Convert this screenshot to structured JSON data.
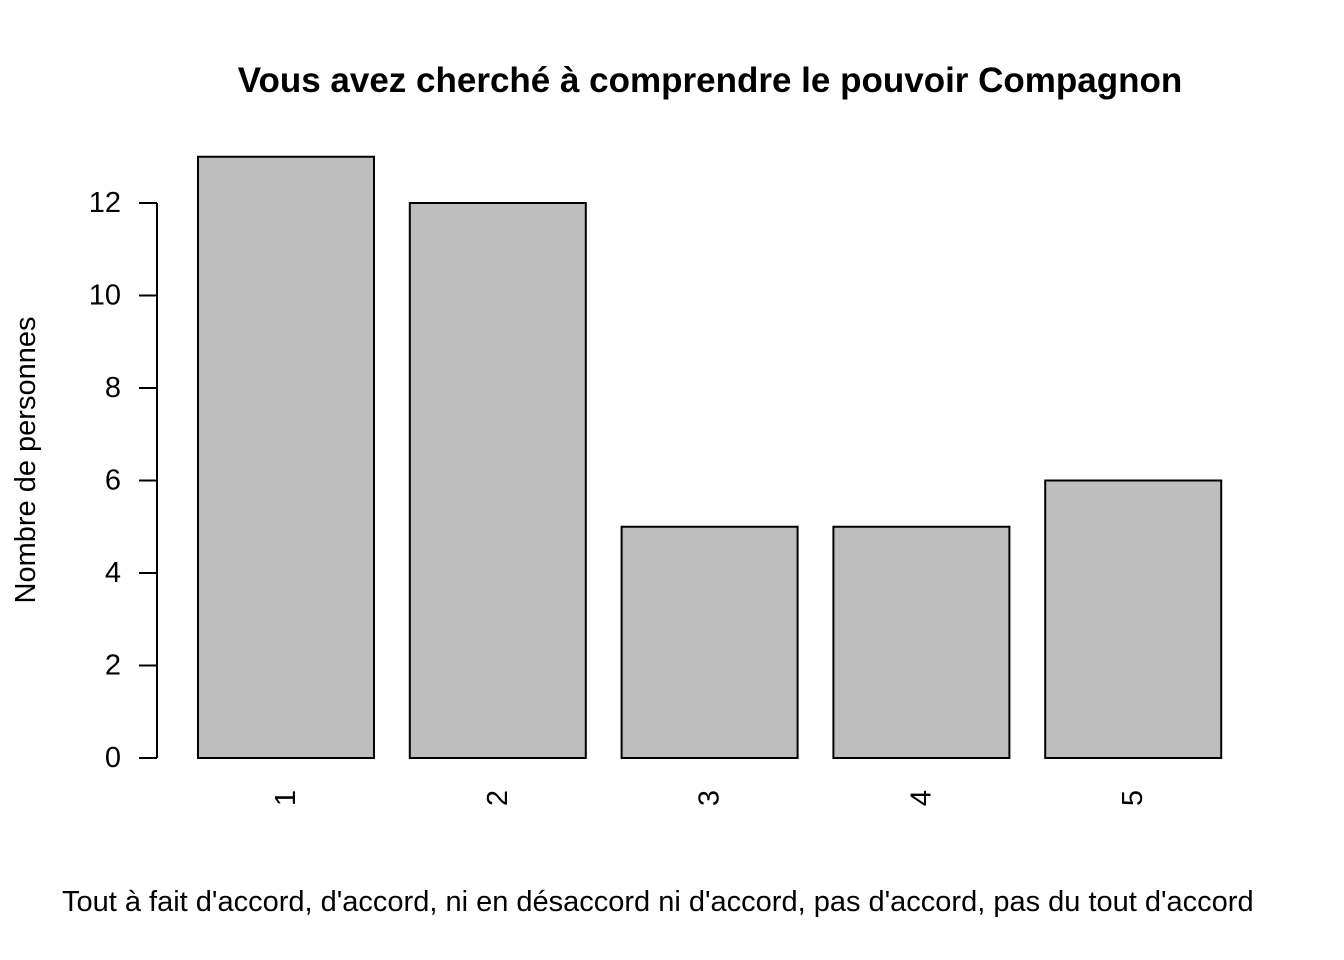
{
  "chart_data": {
    "type": "bar",
    "title": "Vous avez cherché à comprendre le pouvoir Compagnon",
    "xlabel": "Tout à fait d'accord, d'accord, ni en désaccord ni d'accord, pas d'accord, pas du tout d'accord",
    "ylabel": "Nombre de personnes",
    "categories": [
      "1",
      "2",
      "3",
      "4",
      "5"
    ],
    "values": [
      13,
      12,
      5,
      5,
      6
    ],
    "ylim": [
      0,
      13
    ],
    "yticks": [
      "0",
      "2",
      "4",
      "6",
      "8",
      "10",
      "12"
    ],
    "grid": false,
    "legend": "none",
    "colors": {
      "bar_fill": "#bebebe",
      "bar_stroke": "#000000",
      "text": "#000000",
      "background": "#ffffff"
    }
  }
}
